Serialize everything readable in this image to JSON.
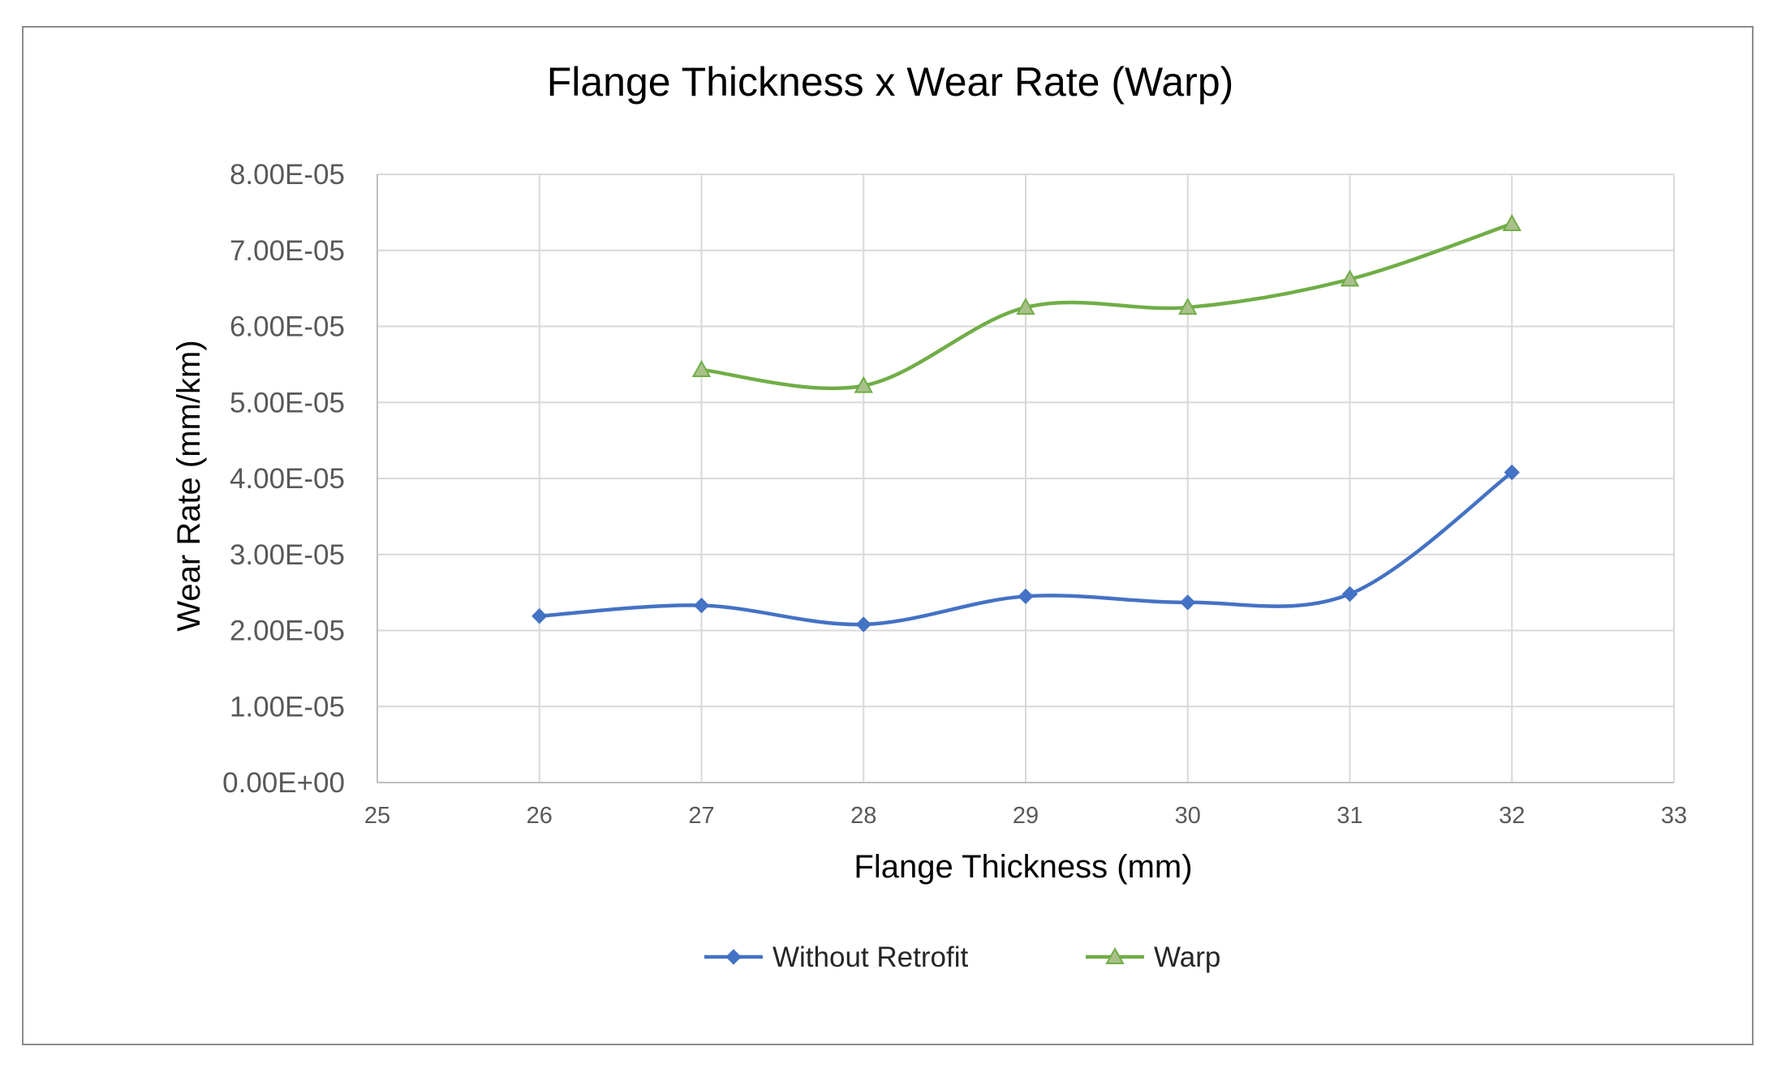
{
  "chart_data": {
    "type": "line",
    "title": "Flange Thickness x Wear Rate (Warp)",
    "xlabel": "Flange Thickness (mm)",
    "ylabel": "Wear Rate (mm/km)",
    "xlim": [
      25,
      33
    ],
    "ylim": [
      0,
      8e-05
    ],
    "x_ticks": [
      "25",
      "26",
      "27",
      "28",
      "29",
      "30",
      "31",
      "32",
      "33"
    ],
    "y_ticks": [
      "0.00E+00",
      "1.00E-05",
      "2.00E-05",
      "3.00E-05",
      "4.00E-05",
      "5.00E-05",
      "6.00E-05",
      "7.00E-05",
      "8.00E-05"
    ],
    "grid": true,
    "smooth": true,
    "legend_position": "bottom",
    "series": [
      {
        "name": "Without Retrofit",
        "color": "#4472c4",
        "marker": "diamond",
        "x": [
          26,
          27,
          28,
          29,
          30,
          31,
          32
        ],
        "y": [
          2.19e-05,
          2.33e-05,
          2.08e-05,
          2.45e-05,
          2.37e-05,
          2.48e-05,
          4.08e-05
        ]
      },
      {
        "name": "Warp",
        "color": "#70ad47",
        "marker_fill": "#a9c08a",
        "marker": "triangle",
        "x": [
          27,
          28,
          29,
          30,
          31,
          32
        ],
        "y": [
          5.43e-05,
          5.22e-05,
          6.25e-05,
          6.25e-05,
          6.62e-05,
          7.35e-05
        ]
      }
    ]
  }
}
